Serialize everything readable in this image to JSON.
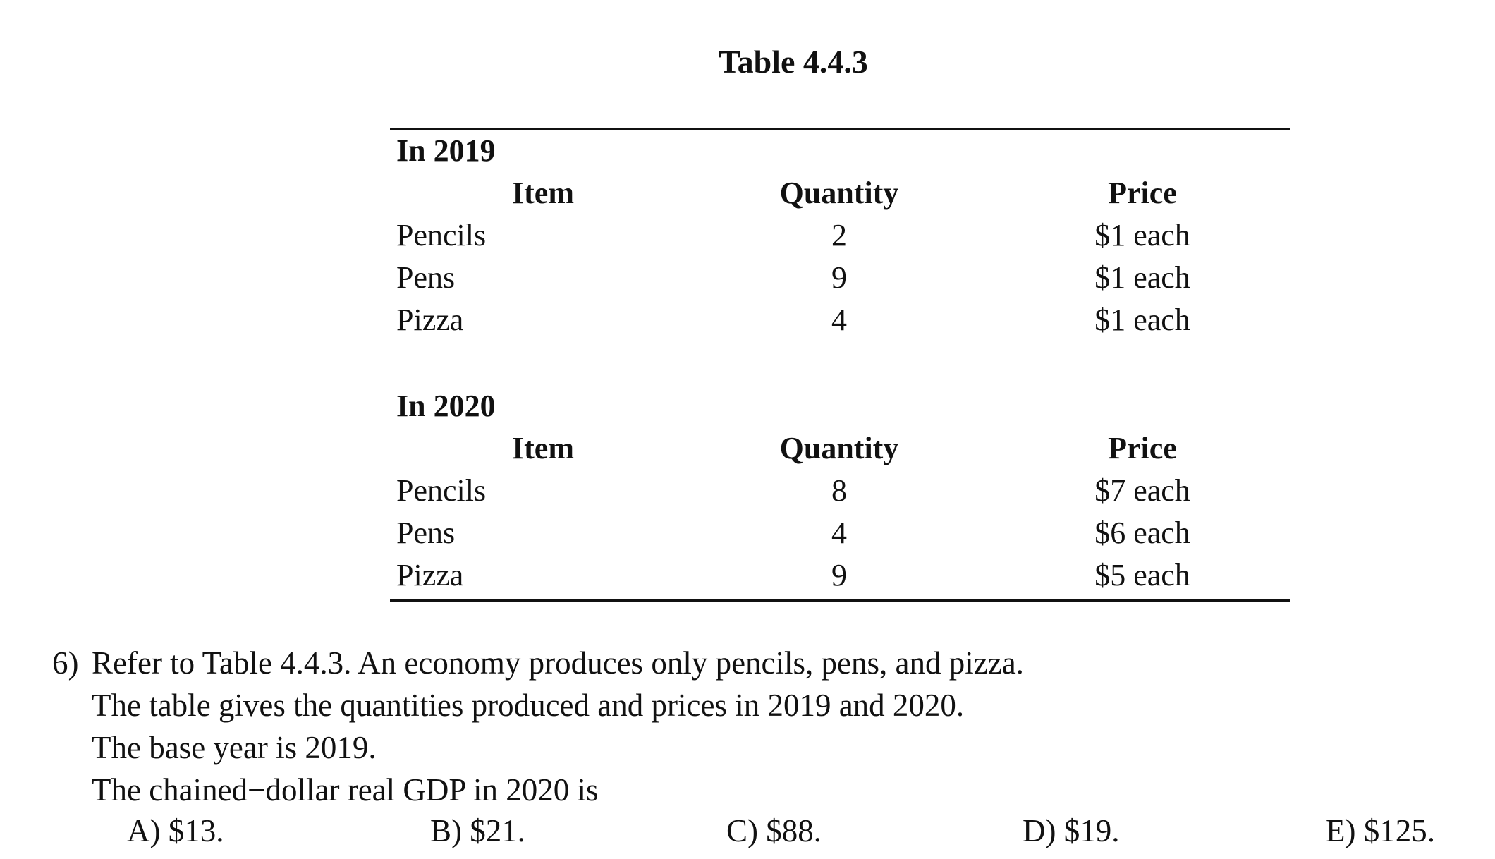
{
  "table": {
    "title": "Table 4.4.3",
    "sections": [
      {
        "label": "In 2019",
        "headers": [
          "Item",
          "Quantity",
          "Price"
        ],
        "rows": [
          [
            "Pencils",
            "2",
            "$1 each"
          ],
          [
            "Pens",
            "9",
            "$1 each"
          ],
          [
            "Pizza",
            "4",
            "$1 each"
          ]
        ]
      },
      {
        "label": "In 2020",
        "headers": [
          "Item",
          "Quantity",
          "Price"
        ],
        "rows": [
          [
            "Pencils",
            "8",
            "$7 each"
          ],
          [
            "Pens",
            "4",
            "$6 each"
          ],
          [
            "Pizza",
            "9",
            "$5 each"
          ]
        ]
      }
    ]
  },
  "question": {
    "number": "6)",
    "lines": [
      "Refer to Table 4.4.3. An economy produces only pencils, pens, and pizza.",
      "The table gives the quantities produced and prices in 2019 and 2020.",
      "The base year is 2019.",
      "The chained−dollar real GDP in 2020 is"
    ],
    "choices": [
      "A) $13.",
      "B) $21.",
      "C) $88.",
      "D) $19.",
      "E) $125."
    ]
  }
}
